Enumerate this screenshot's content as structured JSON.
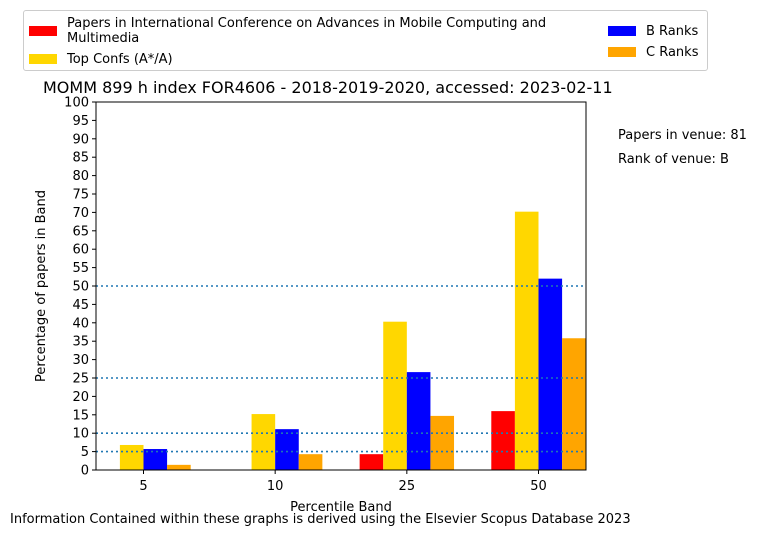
{
  "chart_data": {
    "type": "bar",
    "title": "MOMM 899 h index FOR4606 - 2018-2019-2020, accessed: 2023-02-11",
    "xlabel": "Percentile Band",
    "ylabel": "Percentage of papers in Band",
    "categories": [
      "5",
      "10",
      "25",
      "50"
    ],
    "ylim": [
      0,
      100
    ],
    "yticks": [
      0,
      5,
      10,
      15,
      20,
      25,
      30,
      35,
      40,
      45,
      50,
      55,
      60,
      65,
      70,
      75,
      80,
      85,
      90,
      95,
      100
    ],
    "reference_lines": [
      5,
      10,
      25,
      50
    ],
    "series": [
      {
        "name": "Papers in International Conference on Advances in Mobile Computing and Multimedia",
        "color": "#ff0000",
        "values": [
          0,
          0,
          4.3,
          16
        ]
      },
      {
        "name": "Top Confs (A*/A)",
        "color": "#ffd700",
        "values": [
          6.8,
          15.2,
          40.3,
          70.2
        ]
      },
      {
        "name": "B Ranks",
        "color": "#0000ff",
        "values": [
          5.7,
          11.1,
          26.6,
          52
        ]
      },
      {
        "name": "C Ranks",
        "color": "#ffa500",
        "values": [
          1.4,
          4.3,
          14.7,
          35.8
        ]
      }
    ],
    "legend_position": "top"
  },
  "legend": {
    "red_label": "Papers in International Conference on Advances in Mobile Computing and Multimedia",
    "red_label_line1": "Papers in International Conference on Advances in Mobile Computing and",
    "red_label_line2": "Multimedia",
    "gold_label": "Top Confs (A*/A)",
    "blue_label": "B Ranks",
    "orange_label": "C Ranks"
  },
  "side_info": {
    "papers_in_venue": "Papers in venue: 81",
    "rank_of_venue": "Rank of venue: B"
  },
  "footer": "Information Contained within these graphs is derived using the Elsevier Scopus Database 2023"
}
